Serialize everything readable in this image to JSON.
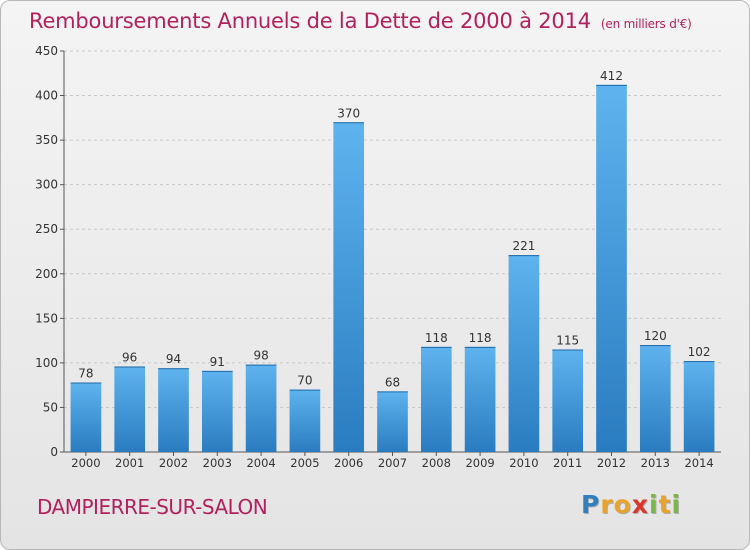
{
  "chart_data": {
    "type": "bar",
    "title": "Remboursements Annuels de la Dette de 2000 à 2014",
    "unit_note": "(en milliers d'€)",
    "categories": [
      "2000",
      "2001",
      "2002",
      "2003",
      "2004",
      "2005",
      "2006",
      "2007",
      "2008",
      "2009",
      "2010",
      "2011",
      "2012",
      "2013",
      "2014"
    ],
    "values": [
      78,
      96,
      94,
      91,
      98,
      70,
      370,
      68,
      118,
      118,
      221,
      115,
      412,
      120,
      102
    ],
    "ylim": [
      0,
      450
    ],
    "yticks": [
      0,
      50,
      100,
      150,
      200,
      250,
      300,
      350,
      400,
      450
    ],
    "xlabel": "",
    "ylabel": "",
    "grid": true,
    "bar_color": "#4a9fdc"
  },
  "footer": {
    "town": "DAMPIERRE-SUR-SALON",
    "logo_letters": [
      {
        "ch": "P",
        "color": "#2f7fc1"
      },
      {
        "ch": "r",
        "color": "#e7a32b"
      },
      {
        "ch": "o",
        "color": "#e7a32b"
      },
      {
        "ch": "x",
        "color": "#d8362f"
      },
      {
        "ch": "i",
        "color": "#7ab648"
      },
      {
        "ch": "t",
        "color": "#e7a32b"
      },
      {
        "ch": "i",
        "color": "#7ab648"
      }
    ]
  }
}
